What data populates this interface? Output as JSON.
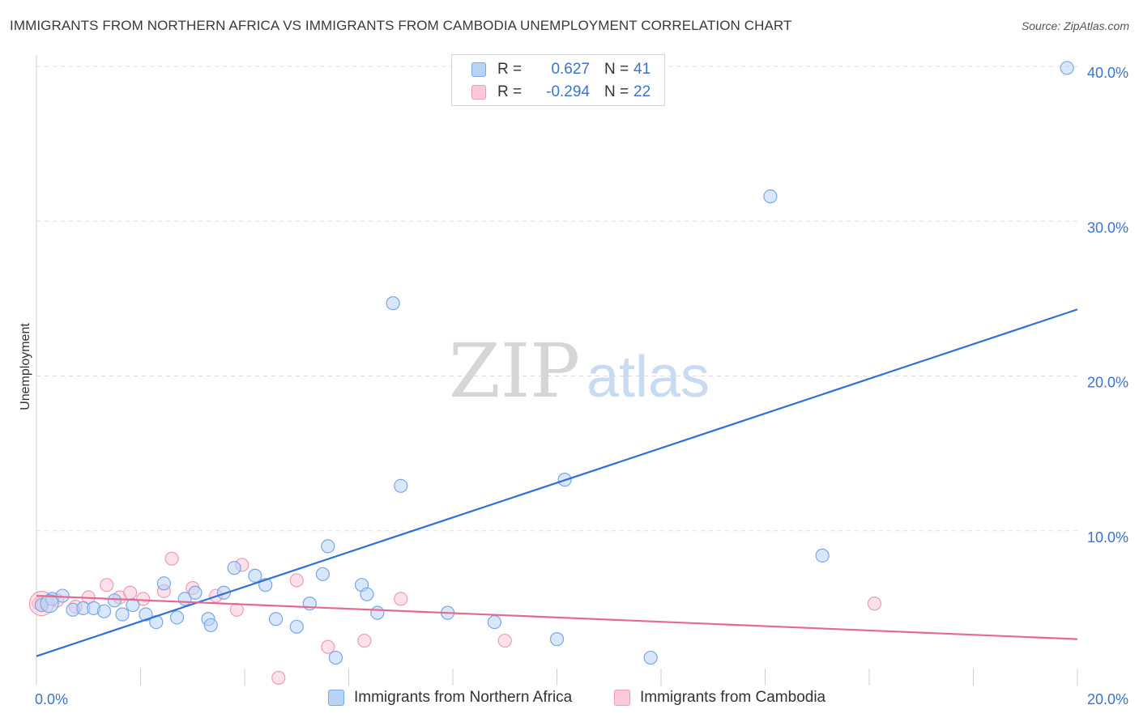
{
  "title": "IMMIGRANTS FROM NORTHERN AFRICA VS IMMIGRANTS FROM CAMBODIA UNEMPLOYMENT CORRELATION CHART",
  "source": "Source: ZipAtlas.com",
  "watermark": {
    "zip": "ZIP",
    "atlas": "atlas"
  },
  "legend": [
    {
      "r_label": "R =",
      "r_value": "0.627",
      "n_label": "N =",
      "n_value": "41"
    },
    {
      "r_label": "R =",
      "r_value": "-0.294",
      "n_label": "N =",
      "n_value": "22"
    }
  ],
  "colors": {
    "blue_fill": "#b9d3f5",
    "blue_stroke": "#7aa7e8",
    "blue_line": "#2f6fd6",
    "pink_fill": "#fcc9d8",
    "pink_stroke": "#ef9bb6",
    "pink_line": "#e46a93",
    "tick_label": "#3a73cf",
    "grid": "#dcdcdc"
  },
  "chart_data": {
    "type": "scatter",
    "xlabel": "",
    "ylabel": "Unemployment",
    "xlim": [
      0,
      20
    ],
    "ylim": [
      0,
      40
    ],
    "x_tick_labels": [
      {
        "value": 0,
        "label": "0.0%"
      },
      {
        "value": 20,
        "label": "20.0%"
      }
    ],
    "y_tick_labels": [
      {
        "value": 10,
        "label": "10.0%"
      },
      {
        "value": 20,
        "label": "20.0%"
      },
      {
        "value": 30,
        "label": "30.0%"
      },
      {
        "value": 40,
        "label": "40.0%"
      }
    ],
    "series": [
      {
        "name": "Immigrants from Northern Africa",
        "color": "blue",
        "points": [
          [
            0.1,
            5.2
          ],
          [
            0.3,
            5.6
          ],
          [
            0.5,
            5.8
          ],
          [
            0.7,
            4.9
          ],
          [
            0.9,
            5.0
          ],
          [
            1.1,
            5.0
          ],
          [
            1.3,
            4.8
          ],
          [
            1.5,
            5.5
          ],
          [
            1.65,
            4.6
          ],
          [
            1.85,
            5.2
          ],
          [
            2.1,
            4.6
          ],
          [
            2.3,
            4.1
          ],
          [
            2.45,
            6.6
          ],
          [
            2.7,
            4.4
          ],
          [
            2.85,
            5.6
          ],
          [
            3.05,
            6.0
          ],
          [
            3.3,
            4.3
          ],
          [
            3.35,
            3.9
          ],
          [
            3.6,
            6.0
          ],
          [
            3.8,
            7.6
          ],
          [
            4.2,
            7.1
          ],
          [
            4.4,
            6.5
          ],
          [
            4.6,
            4.3
          ],
          [
            5.0,
            3.8
          ],
          [
            5.25,
            5.3
          ],
          [
            5.5,
            7.2
          ],
          [
            5.6,
            9.0
          ],
          [
            5.75,
            1.8
          ],
          [
            6.25,
            6.5
          ],
          [
            6.35,
            5.9
          ],
          [
            6.55,
            4.7
          ],
          [
            6.85,
            24.7
          ],
          [
            7.0,
            12.9
          ],
          [
            7.9,
            4.7
          ],
          [
            8.8,
            4.1
          ],
          [
            10.0,
            3.0
          ],
          [
            10.15,
            13.3
          ],
          [
            11.8,
            1.8
          ],
          [
            14.1,
            31.6
          ],
          [
            15.1,
            8.4
          ],
          [
            19.8,
            39.9
          ]
        ],
        "trend": {
          "x0": 0,
          "y0": 1.9,
          "x1": 20,
          "y1": 24.3
        }
      },
      {
        "name": "Immigrants from Cambodia",
        "color": "pink",
        "points": [
          [
            0.1,
            5.4
          ],
          [
            0.4,
            5.5
          ],
          [
            0.75,
            5.1
          ],
          [
            1.0,
            5.7
          ],
          [
            1.35,
            6.5
          ],
          [
            1.6,
            5.7
          ],
          [
            1.8,
            6.0
          ],
          [
            2.05,
            5.6
          ],
          [
            2.45,
            6.1
          ],
          [
            2.6,
            8.2
          ],
          [
            3.0,
            6.3
          ],
          [
            3.45,
            5.8
          ],
          [
            3.85,
            4.9
          ],
          [
            3.95,
            7.8
          ],
          [
            4.65,
            0.5
          ],
          [
            5.0,
            6.8
          ],
          [
            5.6,
            2.5
          ],
          [
            6.3,
            2.9
          ],
          [
            7.0,
            5.6
          ],
          [
            9.0,
            2.9
          ],
          [
            16.1,
            5.3
          ],
          [
            0.05,
            5.3
          ]
        ],
        "trend": {
          "x0": 0,
          "y0": 5.8,
          "x1": 20,
          "y1": 3.0
        }
      }
    ]
  }
}
